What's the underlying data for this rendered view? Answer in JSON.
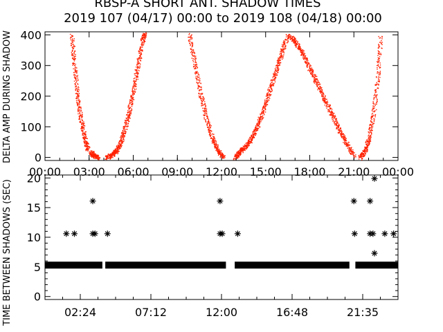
{
  "header": {
    "title_line1": "RBSP-A SHORT ANT. SHADOW TIMES",
    "title_line2": "2019 107 (04/17) 00:00 to 2019 108 (04/18) 00:00"
  },
  "colors": {
    "top_series": "#ff2000",
    "axes": "#000000",
    "bottom_series": "#000000"
  },
  "chart_data": [
    {
      "type": "scatter",
      "ylabel": "DELTA AMP DURING SHADOW",
      "ylim": [
        -10,
        410
      ],
      "xlim_hours": [
        0,
        24
      ],
      "x_tick_labels": [
        "00:00",
        "03:00",
        "06:00",
        "09:00",
        "12:00",
        "15:00",
        "18:00",
        "21:00",
        "00:00"
      ],
      "y_ticks": [
        0,
        100,
        200,
        300,
        400
      ],
      "note_x_units": "hours after 2019-04-17 00:00",
      "series": [
        {
          "arcs": [
            {
              "x": [
                1.8,
                2.0,
                2.2,
                2.45,
                2.7,
                2.9
              ],
              "y": [
                400,
                300,
                200,
                120,
                60,
                25
              ]
            },
            {
              "x": [
                3.1,
                3.3,
                3.6
              ],
              "y": [
                18,
                6,
                0
              ]
            },
            {
              "x": [
                4.2,
                4.5,
                4.8,
                5.1,
                5.4,
                5.7,
                6.0,
                6.3,
                6.6,
                6.8
              ],
              "y": [
                0,
                8,
                20,
                45,
                90,
                150,
                220,
                300,
                380,
                410
              ]
            },
            {
              "x": [
                9.8,
                10.2,
                10.6,
                11.0,
                11.4,
                11.8,
                12.1
              ],
              "y": [
                400,
                300,
                200,
                120,
                60,
                20,
                0
              ]
            },
            {
              "x": [
                12.9,
                13.2,
                13.6,
                14.0,
                14.4,
                14.8,
                15.2,
                15.6,
                16.0,
                16.4
              ],
              "y": [
                0,
                18,
                35,
                60,
                100,
                150,
                210,
                270,
                330,
                390
              ]
            },
            {
              "x": [
                16.5,
                17.0,
                17.5,
                18.0,
                18.5,
                19.0,
                19.5,
                20.0,
                20.5,
                21.0
              ],
              "y": [
                400,
                380,
                340,
                290,
                240,
                190,
                140,
                90,
                45,
                5
              ]
            },
            {
              "x": [
                21.4,
                21.7,
                22.0,
                22.3,
                22.6,
                22.8
              ],
              "y": [
                0,
                20,
                60,
                140,
                260,
                400
              ]
            }
          ]
        }
      ]
    },
    {
      "type": "scatter",
      "ylabel": "TIME BETWEEN SHADOWS (SEC)",
      "ylim": [
        -0.5,
        20.5
      ],
      "x_tick_labels": [
        "02:24",
        "07:12",
        "12:00",
        "16:48",
        "21:35"
      ],
      "y_ticks": [
        0,
        5,
        10,
        15,
        20
      ],
      "series": [
        {
          "baseline_y": 5.3,
          "baseline_spans_hours": [
            [
              0,
              3.9
            ],
            [
              4.1,
              12.3
            ],
            [
              12.9,
              20.7
            ],
            [
              21.1,
              24
            ]
          ],
          "outlier_points": [
            {
              "x": 1.45,
              "y": 10.6
            },
            {
              "x": 2.0,
              "y": 10.6
            },
            {
              "x": 3.25,
              "y": 16.1
            },
            {
              "x": 3.25,
              "y": 10.6
            },
            {
              "x": 3.4,
              "y": 10.6
            },
            {
              "x": 4.25,
              "y": 10.6
            },
            {
              "x": 11.9,
              "y": 16.1
            },
            {
              "x": 11.9,
              "y": 10.6
            },
            {
              "x": 12.05,
              "y": 10.6
            },
            {
              "x": 13.1,
              "y": 10.6
            },
            {
              "x": 21.0,
              "y": 16.1
            },
            {
              "x": 21.05,
              "y": 10.6
            },
            {
              "x": 22.1,
              "y": 16.1
            },
            {
              "x": 22.1,
              "y": 10.6
            },
            {
              "x": 22.3,
              "y": 10.6
            },
            {
              "x": 22.4,
              "y": 19.9
            },
            {
              "x": 22.4,
              "y": 7.3
            },
            {
              "x": 23.1,
              "y": 10.6
            },
            {
              "x": 23.7,
              "y": 10.6
            }
          ]
        }
      ]
    }
  ]
}
